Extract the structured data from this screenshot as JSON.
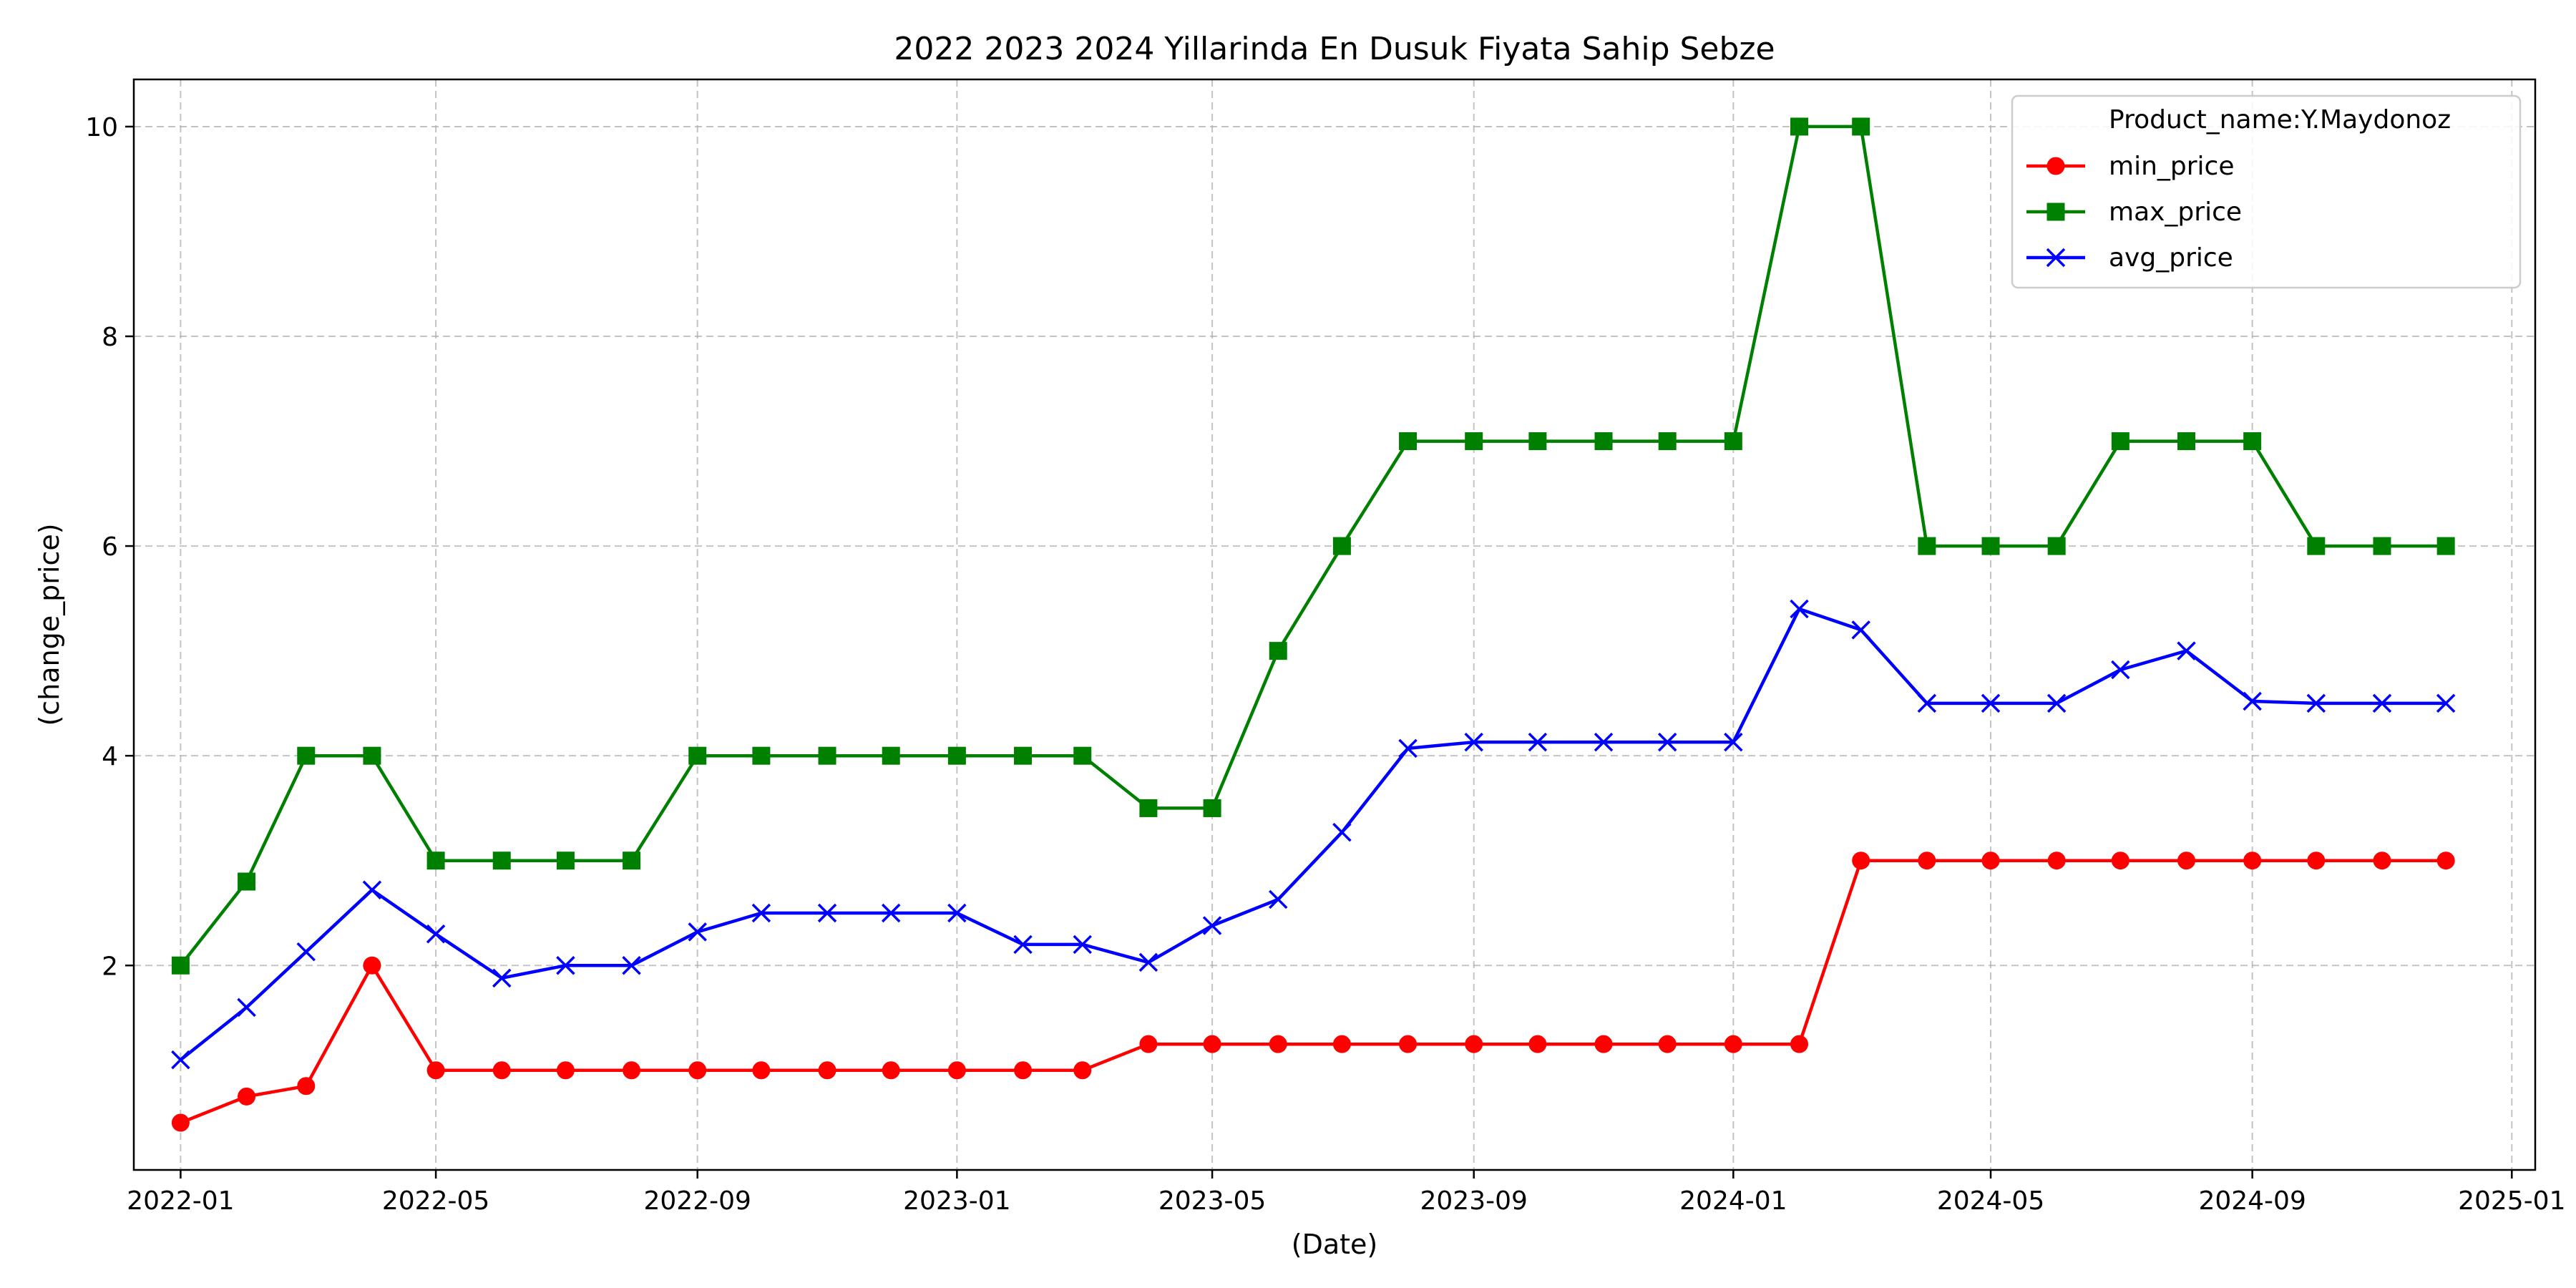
{
  "chart_data": {
    "type": "line",
    "title": "2022 2023 2024 Yillarinda En Dusuk Fiyata Sahip Sebze",
    "xlabel": "(Date)",
    "ylabel": "(change_price)",
    "x_ticks": [
      "2022-01",
      "2022-05",
      "2022-09",
      "2023-01",
      "2023-05",
      "2023-09",
      "2024-01",
      "2024-05",
      "2024-09",
      "2025-01"
    ],
    "y_ticks": [
      2,
      4,
      6,
      8,
      10
    ],
    "ylim": [
      0.05,
      10.45
    ],
    "xlim": [
      "2021-12-10",
      "2025-01-12"
    ],
    "grid": true,
    "legend_position": "top-right",
    "legend_title": "Product_name:Y.Maydonoz",
    "x": [
      "2022-01",
      "2022-02",
      "2022-03",
      "2022-04",
      "2022-05",
      "2022-06",
      "2022-07",
      "2022-08",
      "2022-09",
      "2022-10",
      "2022-11",
      "2022-12",
      "2023-01",
      "2023-02",
      "2023-03",
      "2023-04",
      "2023-05",
      "2023-06",
      "2023-07",
      "2023-08",
      "2023-09",
      "2023-10",
      "2023-11",
      "2023-12",
      "2024-01",
      "2024-02",
      "2024-03",
      "2024-04",
      "2024-05",
      "2024-06",
      "2024-07",
      "2024-08",
      "2024-09",
      "2024-10",
      "2024-11",
      "2024-12"
    ],
    "series": [
      {
        "name": "min_price",
        "color": "#ff0000",
        "marker": "circle",
        "values": [
          0.5,
          0.75,
          0.85,
          2,
          1,
          1,
          1,
          1,
          1,
          1,
          1,
          1,
          1,
          1,
          1,
          1.25,
          1.25,
          1.25,
          1.25,
          1.25,
          1.25,
          1.25,
          1.25,
          1.25,
          1.25,
          1.25,
          3,
          3,
          3,
          3,
          3,
          3,
          3,
          3,
          3,
          3
        ]
      },
      {
        "name": "max_price",
        "color": "#008000",
        "marker": "square",
        "values": [
          2,
          2.8,
          4,
          4,
          3,
          3,
          3,
          3,
          4,
          4,
          4,
          4,
          4,
          4,
          4,
          3.5,
          3.5,
          5,
          6,
          7,
          7,
          7,
          7,
          7,
          7,
          10,
          10,
          6,
          6,
          6,
          7,
          7,
          7,
          6,
          6,
          6
        ]
      },
      {
        "name": "avg_price",
        "color": "#0000ff",
        "marker": "x",
        "values": [
          1.1,
          1.6,
          2.13,
          2.72,
          2.3,
          1.88,
          2,
          2,
          2.32,
          2.5,
          2.5,
          2.5,
          2.5,
          2.2,
          2.2,
          2.03,
          2.38,
          2.63,
          3.27,
          4.07,
          4.13,
          4.13,
          4.13,
          4.13,
          4.13,
          5.4,
          5.2,
          4.5,
          4.5,
          4.5,
          4.82,
          5,
          4.52,
          4.5,
          4.5,
          4.5
        ]
      }
    ]
  }
}
